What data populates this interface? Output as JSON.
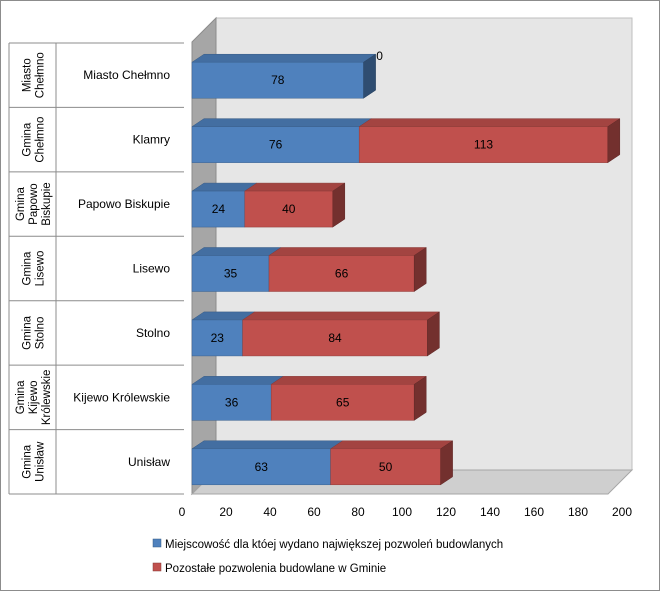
{
  "chart_data": {
    "type": "bar",
    "orientation": "horizontal",
    "stacked": true,
    "three_d": true,
    "title": "",
    "xlim": [
      0,
      200
    ],
    "x_ticks": [
      "0",
      "20",
      "40",
      "60",
      "80",
      "100",
      "120",
      "140",
      "160",
      "180",
      "200"
    ],
    "grid": false,
    "legend_position": "bottom",
    "categories": [
      {
        "group": "Miasto Chełmno",
        "name": "Miasto Chełmno"
      },
      {
        "group": "Gmina Chełmno",
        "name": "Klamry"
      },
      {
        "group": "Gmina Papowo Biskupie",
        "name": "Papowo Biskupie"
      },
      {
        "group": "Gmina Lisewo",
        "name": "Lisewo"
      },
      {
        "group": "Gmina Stolno",
        "name": "Stolno"
      },
      {
        "group": "Gmina Kijewo Królewskie",
        "name": "Kijewo Królewskie"
      },
      {
        "group": "Gmina Unisław",
        "name": "Unisław"
      }
    ],
    "series": [
      {
        "name": "Miejscowość dla któej wydano największej pozwoleń budowlanych",
        "color": "#4f81bd",
        "values": [
          78,
          76,
          24,
          35,
          23,
          36,
          63
        ]
      },
      {
        "name": "Pozostałe pozwolenia budowlane w Gminie",
        "color": "#c0504d",
        "values": [
          0,
          113,
          40,
          66,
          84,
          65,
          50
        ]
      }
    ]
  }
}
